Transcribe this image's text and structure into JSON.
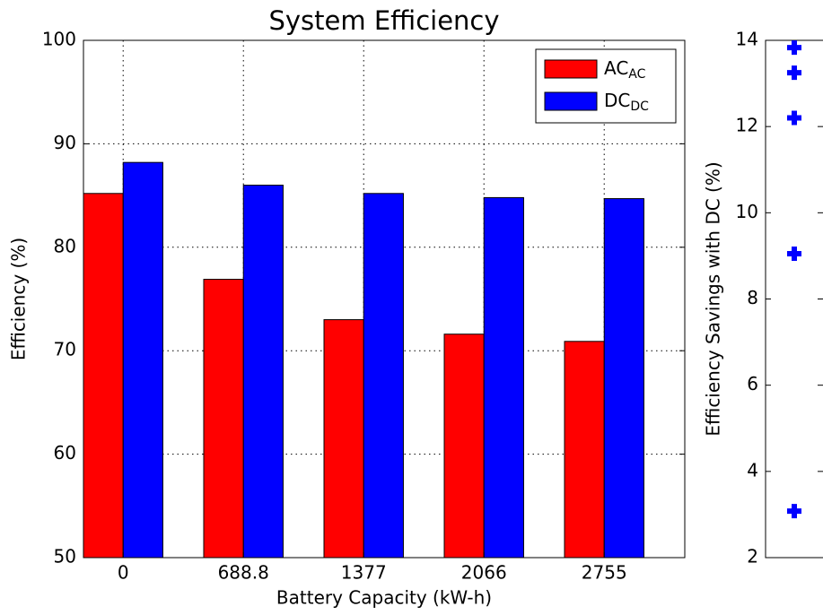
{
  "chart_data": [
    {
      "type": "bar",
      "title": "System Efficiency",
      "x_label": "Battery Capacity (kW-h)",
      "y_label": "Efficiency (%)",
      "categories": [
        "0",
        "688.8",
        "1377",
        "2066",
        "2755"
      ],
      "series": [
        {
          "name": "AC",
          "name_subscript": "AC",
          "color": "#ff0000",
          "values": [
            85.2,
            76.9,
            73.0,
            71.6,
            70.9
          ]
        },
        {
          "name": "DC",
          "name_subscript": "DC",
          "color": "#0000ff",
          "values": [
            88.2,
            86.0,
            85.2,
            84.8,
            84.7
          ]
        }
      ],
      "ylim": [
        50,
        100
      ],
      "yticks": [
        50,
        60,
        70,
        80,
        90,
        100
      ],
      "grid": true,
      "legend": "upper right"
    },
    {
      "type": "scatter",
      "y_label": "Efficiency Savings with DC (%)",
      "color": "#0000ff",
      "values": [
        13.83,
        13.25,
        12.2,
        9.05,
        3.08
      ],
      "ylim": [
        2,
        14
      ],
      "yticks": [
        2,
        4,
        6,
        8,
        10,
        12,
        14
      ]
    }
  ]
}
